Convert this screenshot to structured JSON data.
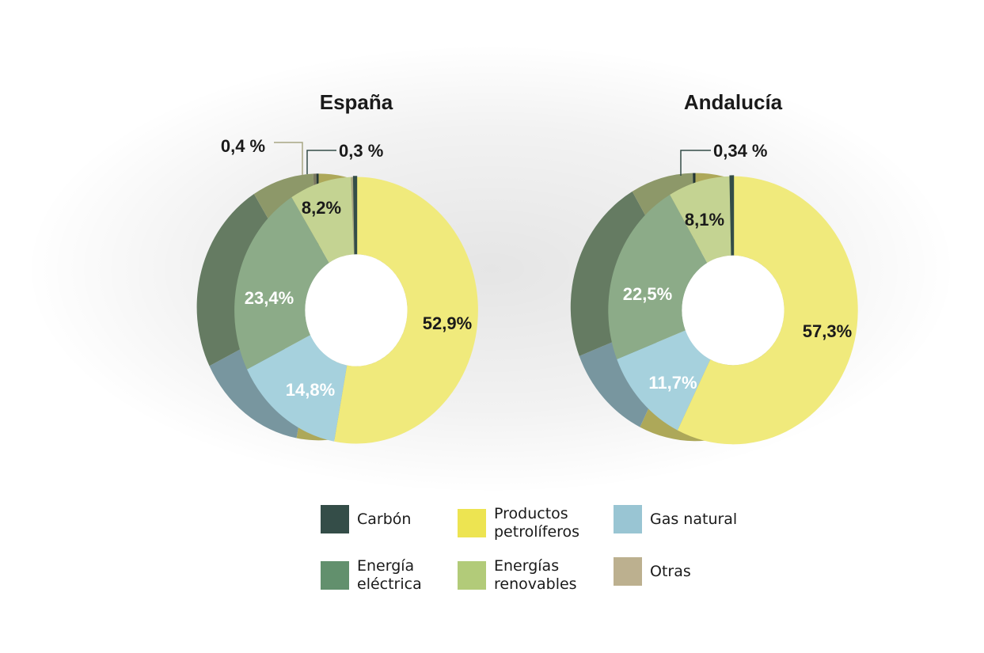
{
  "colors": {
    "Carbón": "#344d48",
    "Productos petrolíferos": "#f0ea7c",
    "Gas natural": "#a6d1dd",
    "Energía eléctrica": "#8cab88",
    "Energías renovables": "#c4d392",
    "Otras": "#a8a683"
  },
  "legend": [
    {
      "label": "Carbón",
      "display": "Carbón",
      "color": "#344d48",
      "icon": "square-swatch"
    },
    {
      "label": "Productos petrolíferos",
      "display": "Productos\npetrolíferos",
      "color": "#ede451",
      "icon": "square-swatch"
    },
    {
      "label": "Gas natural",
      "display": "Gas natural",
      "color": "#99c5d3",
      "icon": "square-swatch"
    },
    {
      "label": "Energía eléctrica",
      "display": "Energía\neléctrica",
      "color": "#62906d",
      "icon": "square-swatch"
    },
    {
      "label": "Energías renovables",
      "display": "Energías\nrenovables",
      "color": "#b2cb79",
      "icon": "square-swatch"
    },
    {
      "label": "Otras",
      "display": "Otras",
      "color": "#bcb08f",
      "icon": "square-swatch"
    }
  ],
  "chart_data": [
    {
      "type": "pie",
      "title": "España",
      "slices": [
        {
          "label": "Productos petrolíferos",
          "value": 52.9,
          "text": "52,9%"
        },
        {
          "label": "Gas natural",
          "value": 14.8,
          "text": "14,8%"
        },
        {
          "label": "Energía eléctrica",
          "value": 23.4,
          "text": "23,4%"
        },
        {
          "label": "Energías renovables",
          "value": 8.2,
          "text": "8,2%"
        },
        {
          "label": "Otras",
          "value": 0.4,
          "text": "0,4 %"
        },
        {
          "label": "Carbón",
          "value": 0.3,
          "text": "0,3 %"
        }
      ]
    },
    {
      "type": "pie",
      "title": "Andalucía",
      "slices": [
        {
          "label": "Productos petrolíferos",
          "value": 57.3,
          "text": "57,3%"
        },
        {
          "label": "Gas natural",
          "value": 11.7,
          "text": "11,7%"
        },
        {
          "label": "Energía eléctrica",
          "value": 22.5,
          "text": "22,5%"
        },
        {
          "label": "Energías renovables",
          "value": 8.1,
          "text": "8,1%"
        },
        {
          "label": "Carbón",
          "value": 0.34,
          "text": "0,34 %"
        }
      ]
    }
  ]
}
